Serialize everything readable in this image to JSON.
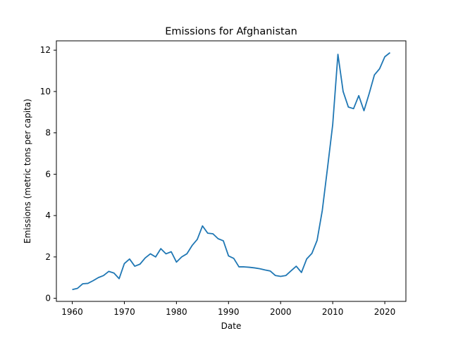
{
  "chart_data": {
    "type": "line",
    "title": "Emissions for Afghanistan",
    "xlabel": "Date",
    "ylabel": "Emissions (metric tons per capita)",
    "xlim": [
      1956.95,
      2024.05
    ],
    "ylim": [
      -0.15,
      12.45
    ],
    "xticks": [
      1960,
      1970,
      1980,
      1990,
      2000,
      2010,
      2020
    ],
    "yticks": [
      0,
      2,
      4,
      6,
      8,
      10,
      12
    ],
    "grid": false,
    "legend": "none",
    "series": [
      {
        "color": "#1f77b4",
        "x": [
          1960,
          1961,
          1962,
          1963,
          1964,
          1965,
          1966,
          1967,
          1968,
          1969,
          1970,
          1971,
          1972,
          1973,
          1974,
          1975,
          1976,
          1977,
          1978,
          1979,
          1980,
          1981,
          1982,
          1983,
          1984,
          1985,
          1986,
          1987,
          1988,
          1989,
          1990,
          1991,
          1992,
          1993,
          1994,
          1995,
          1996,
          1997,
          1998,
          1999,
          2000,
          2001,
          2002,
          2003,
          2004,
          2005,
          2006,
          2007,
          2008,
          2009,
          2010,
          2011,
          2012,
          2013,
          2014,
          2015,
          2016,
          2017,
          2018,
          2019,
          2020,
          2021
        ],
        "y": [
          0.42,
          0.48,
          0.7,
          0.72,
          0.85,
          1.0,
          1.1,
          1.3,
          1.22,
          0.95,
          1.68,
          1.9,
          1.55,
          1.65,
          1.95,
          2.15,
          2.0,
          2.4,
          2.15,
          2.25,
          1.75,
          2.0,
          2.15,
          2.55,
          2.85,
          3.5,
          3.15,
          3.12,
          2.88,
          2.78,
          2.05,
          1.93,
          1.52,
          1.52,
          1.5,
          1.47,
          1.43,
          1.37,
          1.32,
          1.1,
          1.06,
          1.1,
          1.33,
          1.55,
          1.25,
          1.9,
          2.17,
          2.8,
          4.25,
          6.3,
          8.4,
          11.8,
          10.0,
          9.25,
          9.17,
          9.8,
          9.07,
          9.9,
          10.8,
          11.1,
          11.68,
          11.88
        ]
      }
    ]
  }
}
